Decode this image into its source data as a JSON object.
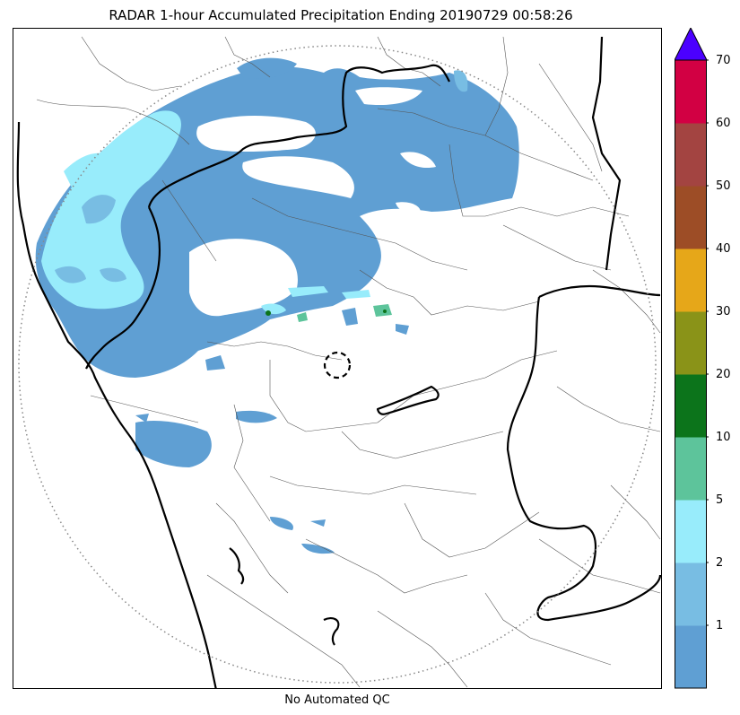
{
  "title": "RADAR 1-hour Accumulated Precipitation Ending 20190729 00:58:26",
  "footer": "No Automated QC",
  "colorbar": {
    "extend_max_color": "#4b00ff",
    "bins": [
      {
        "from": 0,
        "to": 1,
        "color": "#5f9fd3"
      },
      {
        "from": 1,
        "to": 2,
        "color": "#78bde3"
      },
      {
        "from": 2,
        "to": 5,
        "color": "#98ecfb"
      },
      {
        "from": 5,
        "to": 10,
        "color": "#5dc49b"
      },
      {
        "from": 10,
        "to": 20,
        "color": "#0c741b"
      },
      {
        "from": 20,
        "to": 30,
        "color": "#8a9318"
      },
      {
        "from": 30,
        "to": 40,
        "color": "#e6a719"
      },
      {
        "from": 40,
        "to": 50,
        "color": "#9d4d26"
      },
      {
        "from": 50,
        "to": 60,
        "color": "#a34441"
      },
      {
        "from": 60,
        "to": 70,
        "color": "#d20043"
      }
    ],
    "tick_labels": [
      "1",
      "2",
      "5",
      "10",
      "20",
      "30",
      "40",
      "50",
      "60",
      "70"
    ]
  },
  "map": {
    "radar_range_ring": "dotted",
    "radar_site_marker": "dashed-circle"
  }
}
